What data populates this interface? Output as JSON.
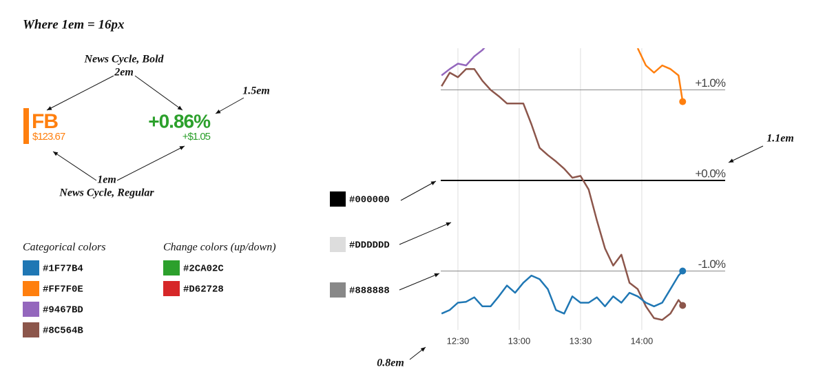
{
  "header": {
    "title": "Where 1em = 16px"
  },
  "typography": {
    "bold_font": "News Cycle, Bold",
    "bold_size": "2em",
    "change_size": "1.5em",
    "regular_size": "1em",
    "regular_font": "News Cycle, Regular",
    "ticker": "FB",
    "price": "$123.67",
    "change_pct": "+0.86%",
    "change_abs": "+$1.05"
  },
  "categorical": {
    "title": "Categorical colors",
    "colors": [
      "#1F77B4",
      "#FF7F0E",
      "#9467BD",
      "#8C564B"
    ]
  },
  "change": {
    "title": "Change colors (up/down)",
    "colors": [
      "#2CA02C",
      "#D62728"
    ]
  },
  "chart_notes": {
    "swatches": [
      "#000000",
      "#DDDDDD",
      "#888888"
    ],
    "tick_size": "1.1em",
    "axis_size": "0.8em"
  },
  "chart_data": {
    "type": "line",
    "x": [
      742,
      746,
      750,
      754,
      758,
      762,
      766,
      770,
      774,
      778,
      782,
      786,
      790,
      794,
      798,
      802,
      806,
      810,
      814,
      818,
      822,
      826,
      830,
      834,
      838,
      842,
      846,
      850,
      854,
      858,
      860
    ],
    "series": [
      {
        "color": "#9467BD",
        "values": [
          1.16,
          1.23,
          1.29,
          1.27,
          1.37,
          1.44,
          1.54,
          null,
          null,
          null,
          null,
          null,
          null,
          null,
          null,
          null,
          null,
          null,
          null,
          null,
          null,
          null,
          null,
          null,
          null,
          null,
          null,
          null,
          null,
          null,
          null
        ]
      },
      {
        "color": "#FF7F0E",
        "values": [
          null,
          null,
          null,
          null,
          null,
          null,
          null,
          null,
          null,
          null,
          null,
          null,
          null,
          null,
          null,
          null,
          null,
          null,
          null,
          null,
          null,
          null,
          null,
          null,
          1.46,
          1.27,
          1.19,
          1.27,
          1.23,
          1.16,
          0.87
        ]
      },
      {
        "color": "#8C564B",
        "values": [
          1.04,
          1.19,
          1.14,
          1.23,
          1.23,
          1.1,
          1.0,
          0.93,
          0.85,
          0.85,
          0.85,
          0.62,
          0.36,
          0.28,
          0.21,
          0.13,
          0.03,
          0.05,
          -0.1,
          -0.44,
          -0.75,
          -0.94,
          -0.82,
          -1.13,
          -1.2,
          -1.39,
          -1.52,
          -1.54,
          -1.47,
          -1.32,
          -1.38
        ]
      },
      {
        "color": "#1F77B4",
        "values": [
          -1.47,
          -1.43,
          -1.35,
          -1.34,
          -1.29,
          -1.39,
          -1.39,
          -1.28,
          -1.16,
          -1.24,
          -1.13,
          -1.05,
          -1.09,
          -1.2,
          -1.43,
          -1.47,
          -1.28,
          -1.35,
          -1.35,
          -1.29,
          -1.39,
          -1.28,
          -1.35,
          -1.24,
          -1.28,
          -1.35,
          -1.39,
          -1.35,
          -1.2,
          -1.05,
          -1.0
        ]
      }
    ],
    "xlim": [
      741.6,
      860
    ],
    "xticks": [
      {
        "value": 750,
        "label": "12:30"
      },
      {
        "value": 780,
        "label": "13:00"
      },
      {
        "value": 810,
        "label": "13:30"
      },
      {
        "value": 840,
        "label": "14:00"
      }
    ],
    "ylim": [
      -1.65,
      1.46
    ],
    "yticks": [
      {
        "value": 1,
        "label": "+1.0%"
      },
      {
        "value": 0,
        "label": "+0.0%"
      },
      {
        "value": -1,
        "label": "-1.0%"
      }
    ]
  }
}
